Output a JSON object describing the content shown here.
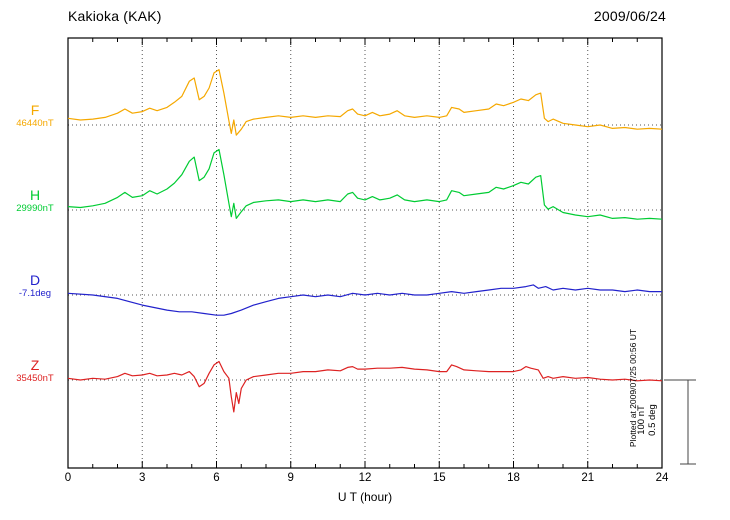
{
  "header": {
    "title": "Kakioka (KAK)",
    "date": "2009/06/24"
  },
  "axis": {
    "xlabel": "U T (hour)"
  },
  "scale_box": {
    "line1": "100 nT",
    "line2": "0.5 deg"
  },
  "footer_note": "Plotted at 2009/07/25 00:56 UT",
  "chart_data": {
    "type": "line",
    "title": "Kakioka (KAK) magnetogram",
    "date": "2009/06/24",
    "xlabel": "U T (hour)",
    "x_range": [
      0,
      24
    ],
    "x_ticks": [
      0,
      3,
      6,
      9,
      12,
      15,
      18,
      21,
      24
    ],
    "grid": "dotted vertical at 3h intervals, dotted horizontal baseline per trace",
    "scale_bar": {
      "nT": 100,
      "deg": 0.5
    },
    "series": [
      {
        "name": "F",
        "baseline_label": "46440nT",
        "baseline_value": 46440,
        "unit": "nT",
        "color": "#f5a800",
        "points": [
          [
            0,
            8
          ],
          [
            0.5,
            6
          ],
          [
            1,
            7
          ],
          [
            1.5,
            9
          ],
          [
            2,
            14
          ],
          [
            2.3,
            19
          ],
          [
            2.6,
            14
          ],
          [
            3,
            16
          ],
          [
            3.3,
            20
          ],
          [
            3.6,
            17
          ],
          [
            4,
            21
          ],
          [
            4.3,
            27
          ],
          [
            4.6,
            34
          ],
          [
            4.9,
            52
          ],
          [
            5.1,
            56
          ],
          [
            5.3,
            30
          ],
          [
            5.5,
            34
          ],
          [
            5.7,
            44
          ],
          [
            5.9,
            62
          ],
          [
            6.1,
            66
          ],
          [
            6.3,
            38
          ],
          [
            6.5,
            5
          ],
          [
            6.6,
            -10
          ],
          [
            6.7,
            6
          ],
          [
            6.8,
            -12
          ],
          [
            7,
            -5
          ],
          [
            7.2,
            4
          ],
          [
            7.5,
            7
          ],
          [
            8,
            9
          ],
          [
            8.5,
            11
          ],
          [
            9,
            9
          ],
          [
            9.5,
            11
          ],
          [
            10,
            9
          ],
          [
            10.5,
            11
          ],
          [
            11,
            10
          ],
          [
            11.3,
            17
          ],
          [
            11.5,
            19
          ],
          [
            11.7,
            13
          ],
          [
            12,
            11
          ],
          [
            12.3,
            15
          ],
          [
            12.6,
            11
          ],
          [
            13,
            13
          ],
          [
            13.3,
            17
          ],
          [
            13.6,
            11
          ],
          [
            14,
            9
          ],
          [
            14.5,
            11
          ],
          [
            15,
            9
          ],
          [
            15.3,
            11
          ],
          [
            15.5,
            21
          ],
          [
            15.8,
            19
          ],
          [
            16,
            15
          ],
          [
            16.5,
            17
          ],
          [
            17,
            19
          ],
          [
            17.3,
            25
          ],
          [
            17.6,
            23
          ],
          [
            18,
            27
          ],
          [
            18.3,
            31
          ],
          [
            18.6,
            29
          ],
          [
            18.9,
            36
          ],
          [
            19.1,
            38
          ],
          [
            19.25,
            8
          ],
          [
            19.4,
            4
          ],
          [
            19.6,
            7
          ],
          [
            20,
            2
          ],
          [
            20.5,
            0
          ],
          [
            21,
            -2
          ],
          [
            21.5,
            0
          ],
          [
            22,
            -4
          ],
          [
            22.5,
            -3
          ],
          [
            23,
            -5
          ],
          [
            23.5,
            -4
          ],
          [
            24,
            -5
          ]
        ]
      },
      {
        "name": "H",
        "baseline_label": "29990nT",
        "baseline_value": 29990,
        "unit": "nT",
        "color": "#00cc33",
        "points": [
          [
            0,
            4
          ],
          [
            0.5,
            3
          ],
          [
            1,
            5
          ],
          [
            1.5,
            8
          ],
          [
            2,
            15
          ],
          [
            2.3,
            21
          ],
          [
            2.6,
            15
          ],
          [
            3,
            17
          ],
          [
            3.3,
            23
          ],
          [
            3.6,
            19
          ],
          [
            4,
            25
          ],
          [
            4.3,
            32
          ],
          [
            4.6,
            42
          ],
          [
            4.9,
            58
          ],
          [
            5.1,
            63
          ],
          [
            5.3,
            35
          ],
          [
            5.5,
            39
          ],
          [
            5.7,
            49
          ],
          [
            5.9,
            68
          ],
          [
            6.1,
            72
          ],
          [
            6.3,
            42
          ],
          [
            6.5,
            8
          ],
          [
            6.6,
            -8
          ],
          [
            6.7,
            8
          ],
          [
            6.8,
            -10
          ],
          [
            7,
            -2
          ],
          [
            7.2,
            5
          ],
          [
            7.5,
            9
          ],
          [
            8,
            11
          ],
          [
            8.5,
            12
          ],
          [
            9,
            10
          ],
          [
            9.5,
            12
          ],
          [
            10,
            10
          ],
          [
            10.5,
            12
          ],
          [
            11,
            10
          ],
          [
            11.3,
            19
          ],
          [
            11.5,
            21
          ],
          [
            11.7,
            14
          ],
          [
            12,
            12
          ],
          [
            12.3,
            16
          ],
          [
            12.6,
            12
          ],
          [
            13,
            14
          ],
          [
            13.3,
            18
          ],
          [
            13.6,
            12
          ],
          [
            14,
            10
          ],
          [
            14.5,
            12
          ],
          [
            15,
            10
          ],
          [
            15.3,
            12
          ],
          [
            15.5,
            23
          ],
          [
            15.8,
            21
          ],
          [
            16,
            17
          ],
          [
            16.5,
            19
          ],
          [
            17,
            21
          ],
          [
            17.3,
            27
          ],
          [
            17.6,
            25
          ],
          [
            18,
            29
          ],
          [
            18.3,
            33
          ],
          [
            18.6,
            31
          ],
          [
            18.9,
            39
          ],
          [
            19.1,
            41
          ],
          [
            19.25,
            6
          ],
          [
            19.4,
            1
          ],
          [
            19.6,
            4
          ],
          [
            20,
            -3
          ],
          [
            20.5,
            -6
          ],
          [
            21,
            -8
          ],
          [
            21.5,
            -6
          ],
          [
            22,
            -10
          ],
          [
            22.5,
            -9
          ],
          [
            23,
            -11
          ],
          [
            23.5,
            -10
          ],
          [
            24,
            -11
          ]
        ]
      },
      {
        "name": "D",
        "baseline_label": "-7.1deg",
        "baseline_value": -7.1,
        "unit": "deg",
        "color": "#2222cc",
        "points": [
          [
            0,
            0.01
          ],
          [
            1,
            0
          ],
          [
            2,
            -0.02
          ],
          [
            3,
            -0.06
          ],
          [
            4,
            -0.09
          ],
          [
            4.5,
            -0.1
          ],
          [
            5,
            -0.1
          ],
          [
            5.5,
            -0.11
          ],
          [
            6,
            -0.12
          ],
          [
            6.3,
            -0.12
          ],
          [
            6.6,
            -0.11
          ],
          [
            7,
            -0.09
          ],
          [
            7.5,
            -0.06
          ],
          [
            8,
            -0.04
          ],
          [
            8.5,
            -0.02
          ],
          [
            9,
            -0.01
          ],
          [
            9.5,
            0
          ],
          [
            10,
            -0.01
          ],
          [
            10.5,
            0
          ],
          [
            11,
            -0.01
          ],
          [
            11.5,
            0.01
          ],
          [
            12,
            0
          ],
          [
            12.5,
            0.01
          ],
          [
            13,
            0
          ],
          [
            13.5,
            0.01
          ],
          [
            14,
            0
          ],
          [
            14.5,
            0
          ],
          [
            15,
            0.01
          ],
          [
            15.5,
            0.02
          ],
          [
            16,
            0.01
          ],
          [
            16.5,
            0.02
          ],
          [
            17,
            0.03
          ],
          [
            17.5,
            0.04
          ],
          [
            18,
            0.04
          ],
          [
            18.5,
            0.05
          ],
          [
            18.8,
            0.06
          ],
          [
            19,
            0.04
          ],
          [
            19.3,
            0.05
          ],
          [
            19.6,
            0.03
          ],
          [
            20,
            0.04
          ],
          [
            20.5,
            0.03
          ],
          [
            21,
            0.04
          ],
          [
            21.5,
            0.03
          ],
          [
            22,
            0.03
          ],
          [
            22.5,
            0.02
          ],
          [
            23,
            0.03
          ],
          [
            23.5,
            0.02
          ],
          [
            24,
            0.02
          ]
        ]
      },
      {
        "name": "Z",
        "baseline_label": "35450nT",
        "baseline_value": 35450,
        "unit": "nT",
        "color": "#dd2222",
        "points": [
          [
            0,
            2
          ],
          [
            0.5,
            0
          ],
          [
            1,
            2
          ],
          [
            1.5,
            1
          ],
          [
            2,
            4
          ],
          [
            2.3,
            8
          ],
          [
            2.6,
            5
          ],
          [
            3,
            6
          ],
          [
            3.3,
            8
          ],
          [
            3.6,
            5
          ],
          [
            4,
            6
          ],
          [
            4.3,
            8
          ],
          [
            4.6,
            6
          ],
          [
            4.9,
            10
          ],
          [
            5.1,
            4
          ],
          [
            5.3,
            -8
          ],
          [
            5.5,
            -4
          ],
          [
            5.7,
            8
          ],
          [
            5.9,
            18
          ],
          [
            6.1,
            22
          ],
          [
            6.3,
            10
          ],
          [
            6.5,
            2
          ],
          [
            6.6,
            -20
          ],
          [
            6.7,
            -38
          ],
          [
            6.8,
            -15
          ],
          [
            6.9,
            -28
          ],
          [
            7,
            -10
          ],
          [
            7.2,
            0
          ],
          [
            7.5,
            4
          ],
          [
            8,
            6
          ],
          [
            8.5,
            8
          ],
          [
            9,
            8
          ],
          [
            9.5,
            10
          ],
          [
            10,
            10
          ],
          [
            10.5,
            12
          ],
          [
            11,
            11
          ],
          [
            11.3,
            15
          ],
          [
            11.5,
            16
          ],
          [
            11.7,
            13
          ],
          [
            12,
            13
          ],
          [
            12.5,
            14
          ],
          [
            13,
            14
          ],
          [
            13.5,
            15
          ],
          [
            14,
            13
          ],
          [
            14.5,
            12
          ],
          [
            15,
            10
          ],
          [
            15.3,
            10
          ],
          [
            15.5,
            18
          ],
          [
            15.7,
            16
          ],
          [
            16,
            12
          ],
          [
            16.5,
            11
          ],
          [
            17,
            10
          ],
          [
            17.5,
            10
          ],
          [
            18,
            10
          ],
          [
            18.3,
            12
          ],
          [
            18.5,
            16
          ],
          [
            18.7,
            14
          ],
          [
            19,
            12
          ],
          [
            19.2,
            2
          ],
          [
            19.4,
            4
          ],
          [
            19.6,
            2
          ],
          [
            20,
            4
          ],
          [
            20.5,
            2
          ],
          [
            21,
            3
          ],
          [
            21.5,
            1
          ],
          [
            22,
            0
          ],
          [
            22.5,
            1
          ],
          [
            23,
            -1
          ],
          [
            23.5,
            0
          ],
          [
            24,
            -1
          ]
        ]
      }
    ]
  }
}
